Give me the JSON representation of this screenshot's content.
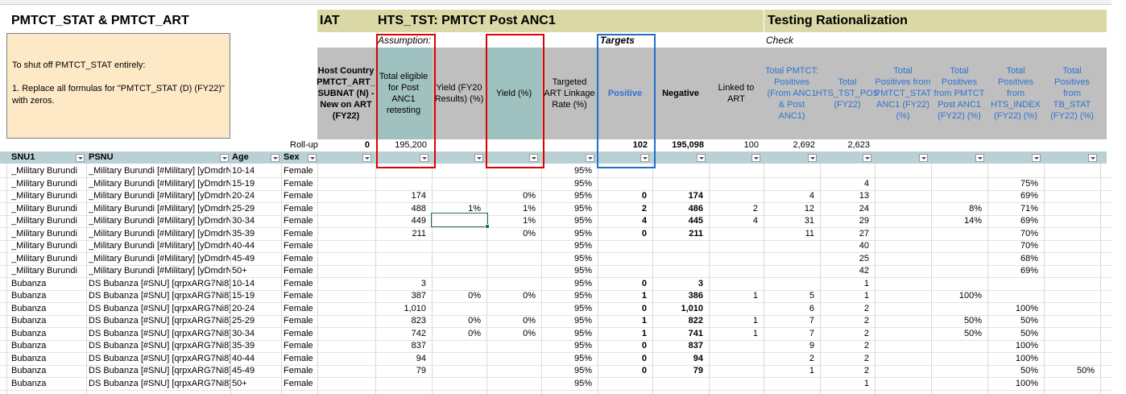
{
  "left": {
    "title": "PMTCT_STAT & PMTCT_ART",
    "note": [
      "To shut off PMTCT_STAT entirely:",
      "",
      "1. Replace all formulas for \"PMTCT_STAT (D) (FY22)\" with zeros."
    ],
    "rollup_label": "Roll-up",
    "filter_headers": [
      "SNU1",
      "PSNU",
      "Age",
      "Sex"
    ]
  },
  "sections": {
    "s1": "IAT",
    "s2": "HTS_TST: PMTCT Post ANC1",
    "s3": "Testing Rationalization",
    "assumption": "Assumption:",
    "targets": "Targets",
    "check": "Check"
  },
  "columns": [
    {
      "id": "ap",
      "header": "Host Country PMTCT_ART_ SUBNAT (N) - New on ART (FY22)",
      "rollup": "0"
    },
    {
      "id": "aq",
      "header": "Total eligible for Post ANC1 retesting",
      "rollup": "195,200"
    },
    {
      "id": "ar",
      "header": "Yield (FY20 Results) (%)",
      "rollup": ""
    },
    {
      "id": "as",
      "header": "Yield (%)",
      "rollup": ""
    },
    {
      "id": "at",
      "header": "Targeted ART Linkage Rate (%)",
      "rollup": ""
    },
    {
      "id": "au",
      "header": "Positive",
      "rollup": "102"
    },
    {
      "id": "av",
      "header": "Negative",
      "rollup": "195,098"
    },
    {
      "id": "aw",
      "header": "Linked to ART",
      "rollup": "100"
    },
    {
      "id": "ax",
      "header": "Total PMTCT: Positives (From ANC1 & Post ANC1)",
      "rollup": "2,692"
    },
    {
      "id": "ay",
      "header": "Total HTS_TST_POS (FY22)",
      "rollup": "2,623"
    },
    {
      "id": "az",
      "header": "Total Positives from PMTCT_STAT ANC1 (FY22) (%)",
      "rollup": ""
    },
    {
      "id": "ba",
      "header": "Total Positives from PMTCT Post ANC1 (FY22) (%)",
      "rollup": ""
    },
    {
      "id": "bb",
      "header": "Total Positives from HTS_INDEX (FY22) (%)",
      "rollup": ""
    },
    {
      "id": "bc",
      "header": "Total Positives from TB_STAT (FY22) (%)",
      "rollup": ""
    }
  ],
  "rows": [
    {
      "snu": "_Military Burundi",
      "psnu": "_Military Burundi [#Military] [yDmdrN",
      "age": "10-14",
      "sex": "Female",
      "v": [
        "",
        "",
        "",
        "",
        "95%",
        "",
        "",
        "",
        "",
        "",
        "",
        "",
        "",
        ""
      ]
    },
    {
      "snu": "_Military Burundi",
      "psnu": "_Military Burundi [#Military] [yDmdrN",
      "age": "15-19",
      "sex": "Female",
      "v": [
        "",
        "",
        "",
        "",
        "95%",
        "",
        "",
        "",
        "",
        "4",
        "",
        "",
        "75%",
        ""
      ]
    },
    {
      "snu": "_Military Burundi",
      "psnu": "_Military Burundi [#Military] [yDmdrN",
      "age": "20-24",
      "sex": "Female",
      "v": [
        "",
        "174",
        "",
        "0%",
        "95%",
        "0",
        "174",
        "",
        "4",
        "13",
        "",
        "",
        "69%",
        ""
      ]
    },
    {
      "snu": "_Military Burundi",
      "psnu": "_Military Burundi [#Military] [yDmdrN",
      "age": "25-29",
      "sex": "Female",
      "v": [
        "",
        "488",
        "1%",
        "1%",
        "95%",
        "2",
        "486",
        "2",
        "12",
        "24",
        "",
        "8%",
        "71%",
        ""
      ]
    },
    {
      "snu": "_Military Burundi",
      "psnu": "_Military Burundi [#Military] [yDmdrN",
      "age": "30-34",
      "sex": "Female",
      "v": [
        "",
        "449",
        "",
        "1%",
        "95%",
        "4",
        "445",
        "4",
        "31",
        "29",
        "",
        "14%",
        "69%",
        ""
      ]
    },
    {
      "snu": "_Military Burundi",
      "psnu": "_Military Burundi [#Military] [yDmdrN",
      "age": "35-39",
      "sex": "Female",
      "v": [
        "",
        "211",
        "",
        "0%",
        "95%",
        "0",
        "211",
        "",
        "11",
        "27",
        "",
        "",
        "70%",
        ""
      ]
    },
    {
      "snu": "_Military Burundi",
      "psnu": "_Military Burundi [#Military] [yDmdrN",
      "age": "40-44",
      "sex": "Female",
      "v": [
        "",
        "",
        "",
        "",
        "95%",
        "",
        "",
        "",
        "",
        "40",
        "",
        "",
        "70%",
        ""
      ]
    },
    {
      "snu": "_Military Burundi",
      "psnu": "_Military Burundi [#Military] [yDmdrN",
      "age": "45-49",
      "sex": "Female",
      "v": [
        "",
        "",
        "",
        "",
        "95%",
        "",
        "",
        "",
        "",
        "25",
        "",
        "",
        "68%",
        ""
      ]
    },
    {
      "snu": "_Military Burundi",
      "psnu": "_Military Burundi [#Military] [yDmdrN",
      "age": "50+",
      "sex": "Female",
      "v": [
        "",
        "",
        "",
        "",
        "95%",
        "",
        "",
        "",
        "",
        "42",
        "",
        "",
        "69%",
        ""
      ]
    },
    {
      "snu": "Bubanza",
      "psnu": "DS Bubanza [#SNU] [qrpxARG7Ni8]",
      "age": "10-14",
      "sex": "Female",
      "v": [
        "",
        "3",
        "",
        "",
        "95%",
        "0",
        "3",
        "",
        "",
        "1",
        "",
        "",
        "",
        ""
      ]
    },
    {
      "snu": "Bubanza",
      "psnu": "DS Bubanza [#SNU] [qrpxARG7Ni8]",
      "age": "15-19",
      "sex": "Female",
      "v": [
        "",
        "387",
        "0%",
        "0%",
        "95%",
        "1",
        "386",
        "1",
        "5",
        "1",
        "",
        "100%",
        "",
        ""
      ]
    },
    {
      "snu": "Bubanza",
      "psnu": "DS Bubanza [#SNU] [qrpxARG7Ni8]",
      "age": "20-24",
      "sex": "Female",
      "v": [
        "",
        "1,010",
        "",
        "",
        "95%",
        "0",
        "1,010",
        "",
        "6",
        "2",
        "",
        "",
        "100%",
        ""
      ]
    },
    {
      "snu": "Bubanza",
      "psnu": "DS Bubanza [#SNU] [qrpxARG7Ni8]",
      "age": "25-29",
      "sex": "Female",
      "v": [
        "",
        "823",
        "0%",
        "0%",
        "95%",
        "1",
        "822",
        "1",
        "7",
        "2",
        "",
        "50%",
        "50%",
        ""
      ]
    },
    {
      "snu": "Bubanza",
      "psnu": "DS Bubanza [#SNU] [qrpxARG7Ni8]",
      "age": "30-34",
      "sex": "Female",
      "v": [
        "",
        "742",
        "0%",
        "0%",
        "95%",
        "1",
        "741",
        "1",
        "7",
        "2",
        "",
        "50%",
        "50%",
        ""
      ]
    },
    {
      "snu": "Bubanza",
      "psnu": "DS Bubanza [#SNU] [qrpxARG7Ni8]",
      "age": "35-39",
      "sex": "Female",
      "v": [
        "",
        "837",
        "",
        "",
        "95%",
        "0",
        "837",
        "",
        "9",
        "2",
        "",
        "",
        "100%",
        ""
      ]
    },
    {
      "snu": "Bubanza",
      "psnu": "DS Bubanza [#SNU] [qrpxARG7Ni8]",
      "age": "40-44",
      "sex": "Female",
      "v": [
        "",
        "94",
        "",
        "",
        "95%",
        "0",
        "94",
        "",
        "2",
        "2",
        "",
        "",
        "100%",
        ""
      ]
    },
    {
      "snu": "Bubanza",
      "psnu": "DS Bubanza [#SNU] [qrpxARG7Ni8]",
      "age": "45-49",
      "sex": "Female",
      "v": [
        "",
        "79",
        "",
        "",
        "95%",
        "0",
        "79",
        "",
        "1",
        "2",
        "",
        "",
        "50%",
        "50%"
      ]
    },
    {
      "snu": "Bubanza",
      "psnu": "DS Bubanza [#SNU] [qrpxARG7Ni8]",
      "age": "50+",
      "sex": "Female",
      "v": [
        "",
        "",
        "",
        "",
        "95%",
        "",
        "",
        "",
        "",
        "1",
        "",
        "",
        "100%",
        ""
      ]
    }
  ]
}
